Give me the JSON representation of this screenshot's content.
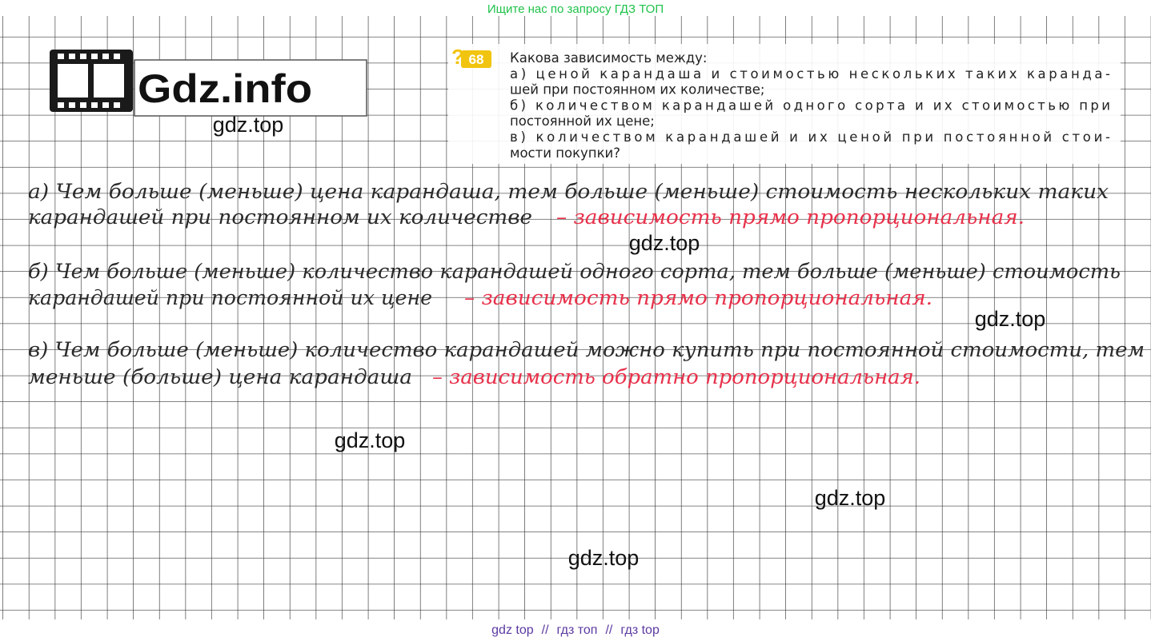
{
  "header_link": "Ищите нас по запросу ГДЗ ТОП",
  "logo": "Gdz.info",
  "problem": {
    "number": "68",
    "lines": [
      "Какова зависимость между:",
      "а) ценой карандаша и стоимостью нескольких таких каранда-",
      "шей при постоянном их количестве;",
      "б) количеством карандашей одного сорта и их стоимостью при",
      "постоянной их цене;",
      "в) количеством карандашей и их ценой при постоянной стои-",
      "мости покупки?"
    ]
  },
  "answers": [
    {
      "line1": "а) Чем больше (меньше) цена карандаша, тем больше (меньше) стоимость нескольких таких",
      "line2": "карандашей при постоянном их количестве",
      "conclusion": "– зависимость прямо пропорциональная."
    },
    {
      "line1": "б) Чем больше (меньше) количество карандашей одного сорта, тем больше (меньше) стоимость",
      "line2": "карандашей при постоянной их цене",
      "conclusion": "– зависимость прямо пропорциональная."
    },
    {
      "line1": "в) Чем больше (меньше) количество карандашей можно купить при постоянной стоимости, тем",
      "line2": "меньше (больше) цена карандаша",
      "conclusion": "– зависимость обратно пропорциональная."
    }
  ],
  "watermarks": [
    "gdz.top",
    "gdz.top",
    "gdz.top",
    "gdz.top",
    "gdz.top",
    "gdz.top"
  ],
  "footer": {
    "items": [
      "gdz top",
      "гдз топ",
      "гдз top"
    ],
    "separator": "//"
  }
}
